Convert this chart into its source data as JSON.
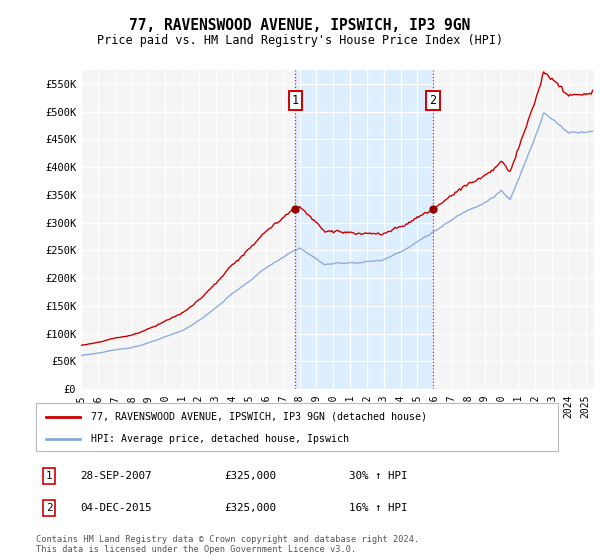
{
  "title": "77, RAVENSWOOD AVENUE, IPSWICH, IP3 9GN",
  "subtitle": "Price paid vs. HM Land Registry's House Price Index (HPI)",
  "legend_line1": "77, RAVENSWOOD AVENUE, IPSWICH, IP3 9GN (detached house)",
  "legend_line2": "HPI: Average price, detached house, Ipswich",
  "annotation1_date": "28-SEP-2007",
  "annotation1_price": "£325,000",
  "annotation1_hpi": "30% ↑ HPI",
  "annotation1_year": 2007.75,
  "annotation2_date": "04-DEC-2015",
  "annotation2_price": "£325,000",
  "annotation2_hpi": "16% ↑ HPI",
  "annotation2_year": 2015.92,
  "price_color": "#cc0000",
  "hpi_color": "#88aadd",
  "shade_color": "#ddeeff",
  "footer": "Contains HM Land Registry data © Crown copyright and database right 2024.\nThis data is licensed under the Open Government Licence v3.0.",
  "ylim": [
    0,
    575000
  ],
  "yticks": [
    0,
    50000,
    100000,
    150000,
    200000,
    250000,
    300000,
    350000,
    400000,
    450000,
    500000,
    550000
  ],
  "ytick_labels": [
    "£0",
    "£50K",
    "£100K",
    "£150K",
    "£200K",
    "£250K",
    "£300K",
    "£350K",
    "£400K",
    "£450K",
    "£500K",
    "£550K"
  ],
  "xlim_start": 1995.0,
  "xlim_end": 2025.5,
  "background_color": "#ffffff"
}
